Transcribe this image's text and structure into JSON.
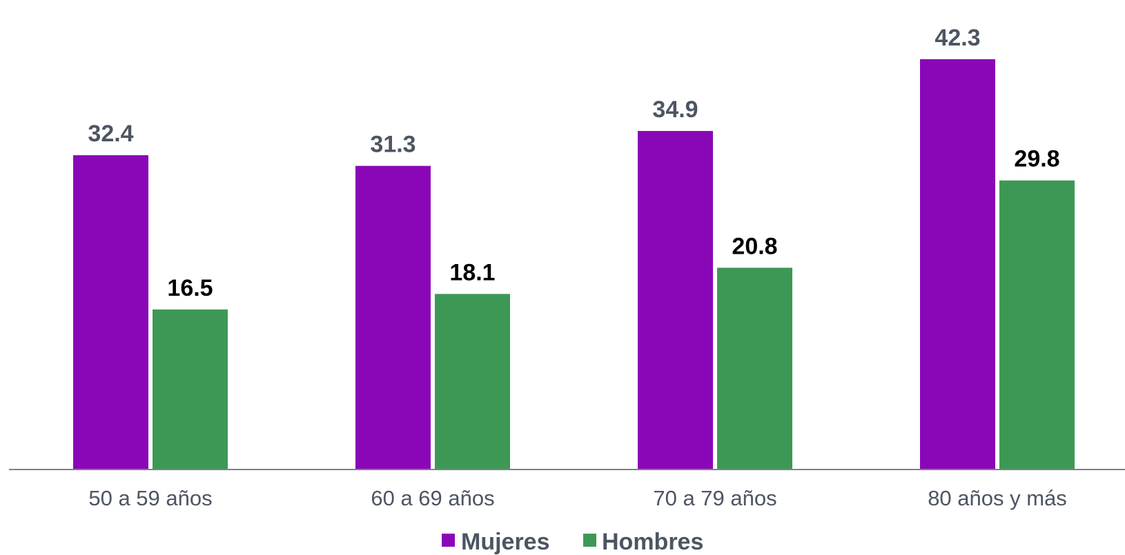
{
  "chart_data": {
    "type": "bar",
    "categories": [
      "50 a 59 años",
      "60 a 69 años",
      "70 a 79 años",
      "80 años y más"
    ],
    "series": [
      {
        "name": "Mujeres",
        "values": [
          32.4,
          31.3,
          34.9,
          42.3
        ],
        "color": "#8a07b7",
        "label_color": "#4d5562"
      },
      {
        "name": "Hombres",
        "values": [
          16.5,
          18.1,
          20.8,
          29.8
        ],
        "color": "#3e9855",
        "label_color": "#000000"
      }
    ],
    "ylim": [
      0,
      45
    ],
    "grid": false,
    "legend": "bottom-center",
    "axis_color": "#7a8290"
  }
}
